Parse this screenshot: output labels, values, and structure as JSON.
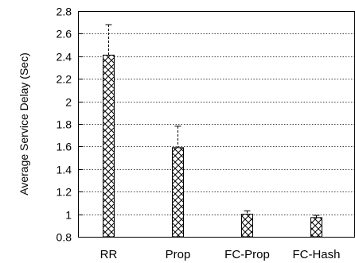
{
  "chart_data": {
    "type": "bar",
    "title": "",
    "xlabel": "",
    "ylabel": "Average Service Delay (Sec)",
    "categories": [
      "RR",
      "Prop",
      "FC-Prop",
      "FC-Hash"
    ],
    "values": [
      2.41,
      1.59,
      1.0,
      0.97
    ],
    "error_upper": [
      2.68,
      1.78,
      1.03,
      0.99
    ],
    "ylim": [
      0.8,
      2.8
    ],
    "yticks": [
      "0.8",
      "1",
      "1.2",
      "1.4",
      "1.6",
      "1.8",
      "2",
      "2.2",
      "2.4",
      "2.6",
      "2.8"
    ],
    "grid": true,
    "bar_pattern": "crosshatch",
    "colors": {
      "bar_stroke": "#000000",
      "grid": "#000000",
      "background": "#ffffff"
    }
  }
}
